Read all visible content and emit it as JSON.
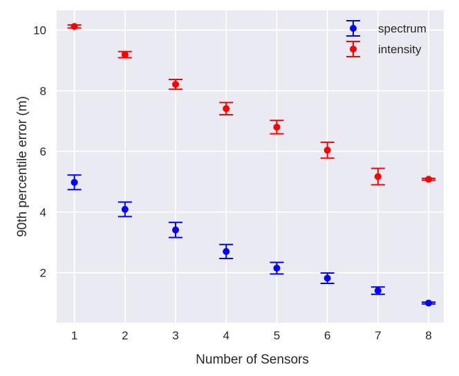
{
  "chart_data": {
    "type": "scatter",
    "error_bars": true,
    "xlabel": "Number of Sensors",
    "ylabel": "90th percentile error (m)",
    "x": [
      1,
      2,
      3,
      4,
      5,
      6,
      7,
      8
    ],
    "xlim": [
      0.65,
      8.3
    ],
    "ylim": [
      0.35,
      10.65
    ],
    "xticks": [
      1,
      2,
      3,
      4,
      5,
      6,
      7,
      8
    ],
    "yticks": [
      2,
      4,
      6,
      8,
      10
    ],
    "grid": true,
    "legend_position": "top-right",
    "series": [
      {
        "name": "spectrum",
        "color": "#0000ff",
        "values": [
          4.98,
          4.09,
          3.41,
          2.7,
          2.15,
          1.82,
          1.41,
          1.0
        ],
        "errors": [
          0.24,
          0.24,
          0.25,
          0.23,
          0.19,
          0.17,
          0.12,
          0.03
        ]
      },
      {
        "name": "intensity",
        "color": "#ff0000",
        "values": [
          10.12,
          9.19,
          8.21,
          7.41,
          6.8,
          6.04,
          5.17,
          5.08
        ],
        "errors": [
          0.05,
          0.1,
          0.16,
          0.2,
          0.22,
          0.26,
          0.27,
          0.03
        ]
      }
    ]
  }
}
